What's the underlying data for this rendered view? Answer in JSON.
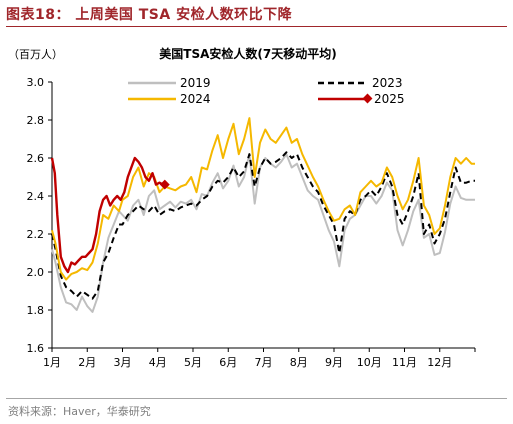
{
  "figure_title": "图表18：  上周美国 TSA 安检人数环比下降",
  "source": "资料来源：Haver，华泰研究",
  "colors": {
    "accent": "#a0262b",
    "series_2019": "#bfbfbf",
    "series_2023": "#000000",
    "series_2024": "#f5b800",
    "series_2025": "#c00000"
  },
  "chart_data": {
    "type": "line",
    "title": "美国TSA安检人数(7天移动平均)",
    "unit": "（百万人）",
    "ylim": [
      1.6,
      3.0
    ],
    "yticks": [
      "3.0",
      "2.8",
      "2.6",
      "2.4",
      "2.2",
      "2.0",
      "1.8",
      "1.6"
    ],
    "ytick_values": [
      3.0,
      2.8,
      2.6,
      2.4,
      2.2,
      2.0,
      1.8,
      1.6
    ],
    "xlim": [
      1,
      13
    ],
    "xticks": [
      "1月",
      "2月",
      "3月",
      "4月",
      "5月",
      "6月",
      "7月",
      "8月",
      "9月",
      "10月",
      "11月",
      "12月"
    ],
    "xtick_values": [
      1,
      2,
      3,
      4,
      5,
      6,
      7,
      8,
      9,
      10,
      11,
      12
    ],
    "legend_position": "top",
    "grid": false,
    "series": [
      {
        "name": "2019",
        "color": "#bfbfbf",
        "style": "solid",
        "x": [
          1.0,
          1.1,
          1.25,
          1.4,
          1.55,
          1.7,
          1.85,
          2.0,
          2.15,
          2.3,
          2.45,
          2.6,
          2.75,
          2.9,
          3.0,
          3.15,
          3.3,
          3.45,
          3.6,
          3.75,
          3.9,
          4.05,
          4.2,
          4.35,
          4.5,
          4.65,
          4.8,
          4.95,
          5.1,
          5.25,
          5.4,
          5.55,
          5.7,
          5.85,
          6.0,
          6.15,
          6.3,
          6.45,
          6.6,
          6.75,
          6.9,
          7.05,
          7.2,
          7.35,
          7.5,
          7.65,
          7.8,
          7.95,
          8.1,
          8.25,
          8.4,
          8.55,
          8.7,
          8.85,
          9.0,
          9.15,
          9.3,
          9.45,
          9.6,
          9.75,
          9.9,
          10.05,
          10.2,
          10.35,
          10.5,
          10.65,
          10.8,
          10.95,
          11.1,
          11.25,
          11.4,
          11.55,
          11.7,
          11.85,
          12.0,
          12.15,
          12.3,
          12.45,
          12.6,
          12.75,
          12.9,
          13.0
        ],
        "y": [
          2.12,
          2.05,
          1.92,
          1.84,
          1.83,
          1.8,
          1.87,
          1.82,
          1.79,
          1.87,
          2.05,
          2.18,
          2.25,
          2.32,
          2.3,
          2.27,
          2.35,
          2.38,
          2.3,
          2.4,
          2.43,
          2.33,
          2.35,
          2.37,
          2.34,
          2.37,
          2.36,
          2.38,
          2.33,
          2.41,
          2.4,
          2.47,
          2.52,
          2.44,
          2.48,
          2.56,
          2.45,
          2.5,
          2.62,
          2.36,
          2.55,
          2.6,
          2.57,
          2.55,
          2.58,
          2.62,
          2.55,
          2.57,
          2.5,
          2.43,
          2.4,
          2.38,
          2.3,
          2.22,
          2.16,
          2.03,
          2.22,
          2.28,
          2.3,
          2.35,
          2.4,
          2.4,
          2.36,
          2.4,
          2.47,
          2.43,
          2.22,
          2.14,
          2.22,
          2.32,
          2.38,
          2.18,
          2.2,
          2.09,
          2.1,
          2.21,
          2.36,
          2.45,
          2.39,
          2.38,
          2.38,
          2.38
        ]
      },
      {
        "name": "2023",
        "color": "#000000",
        "style": "dashed",
        "x": [
          1.0,
          1.1,
          1.25,
          1.4,
          1.55,
          1.7,
          1.85,
          2.0,
          2.15,
          2.3,
          2.45,
          2.6,
          2.75,
          2.9,
          3.0,
          3.15,
          3.3,
          3.45,
          3.6,
          3.75,
          3.9,
          4.05,
          4.2,
          4.35,
          4.5,
          4.65,
          4.8,
          4.95,
          5.1,
          5.25,
          5.4,
          5.55,
          5.7,
          5.85,
          6.0,
          6.15,
          6.3,
          6.45,
          6.6,
          6.75,
          6.9,
          7.05,
          7.2,
          7.35,
          7.5,
          7.65,
          7.8,
          7.95,
          8.1,
          8.25,
          8.4,
          8.55,
          8.7,
          8.85,
          9.0,
          9.15,
          9.3,
          9.45,
          9.6,
          9.75,
          9.9,
          10.05,
          10.2,
          10.35,
          10.5,
          10.65,
          10.8,
          10.95,
          11.1,
          11.25,
          11.4,
          11.55,
          11.7,
          11.85,
          12.0,
          12.15,
          12.3,
          12.45,
          12.6,
          12.75,
          12.9,
          13.0
        ],
        "y": [
          2.2,
          2.12,
          1.98,
          1.92,
          1.9,
          1.87,
          1.9,
          1.88,
          1.86,
          1.9,
          2.05,
          2.1,
          2.18,
          2.25,
          2.25,
          2.3,
          2.32,
          2.35,
          2.33,
          2.32,
          2.35,
          2.3,
          2.32,
          2.33,
          2.32,
          2.34,
          2.35,
          2.36,
          2.35,
          2.38,
          2.4,
          2.45,
          2.48,
          2.47,
          2.5,
          2.55,
          2.5,
          2.53,
          2.62,
          2.45,
          2.55,
          2.6,
          2.57,
          2.58,
          2.6,
          2.63,
          2.6,
          2.62,
          2.55,
          2.5,
          2.45,
          2.42,
          2.35,
          2.3,
          2.25,
          2.1,
          2.28,
          2.32,
          2.3,
          2.38,
          2.4,
          2.43,
          2.4,
          2.45,
          2.52,
          2.45,
          2.3,
          2.25,
          2.32,
          2.4,
          2.52,
          2.2,
          2.25,
          2.15,
          2.2,
          2.28,
          2.42,
          2.55,
          2.47,
          2.47,
          2.48,
          2.48
        ]
      },
      {
        "name": "2024",
        "color": "#f5b800",
        "style": "solid",
        "x": [
          1.0,
          1.1,
          1.25,
          1.4,
          1.55,
          1.7,
          1.85,
          2.0,
          2.15,
          2.3,
          2.45,
          2.6,
          2.75,
          2.9,
          3.0,
          3.15,
          3.3,
          3.45,
          3.6,
          3.75,
          3.9,
          4.05,
          4.2,
          4.35,
          4.5,
          4.65,
          4.8,
          4.95,
          5.1,
          5.25,
          5.4,
          5.55,
          5.7,
          5.85,
          6.0,
          6.15,
          6.3,
          6.45,
          6.6,
          6.75,
          6.9,
          7.05,
          7.2,
          7.35,
          7.5,
          7.65,
          7.8,
          7.95,
          8.1,
          8.25,
          8.4,
          8.55,
          8.7,
          8.85,
          9.0,
          9.15,
          9.3,
          9.45,
          9.6,
          9.75,
          9.9,
          10.05,
          10.2,
          10.35,
          10.5,
          10.65,
          10.8,
          10.95,
          11.1,
          11.25,
          11.4,
          11.55,
          11.7,
          11.85,
          12.0,
          12.15,
          12.3,
          12.45,
          12.6,
          12.75,
          12.9,
          13.0
        ],
        "y": [
          2.22,
          2.15,
          2.0,
          1.96,
          1.99,
          2.0,
          2.02,
          2.01,
          2.05,
          2.15,
          2.3,
          2.28,
          2.35,
          2.32,
          2.38,
          2.4,
          2.5,
          2.55,
          2.45,
          2.52,
          2.5,
          2.42,
          2.45,
          2.44,
          2.43,
          2.45,
          2.46,
          2.5,
          2.42,
          2.55,
          2.54,
          2.64,
          2.72,
          2.6,
          2.7,
          2.78,
          2.62,
          2.7,
          2.81,
          2.5,
          2.68,
          2.75,
          2.7,
          2.68,
          2.72,
          2.76,
          2.68,
          2.7,
          2.62,
          2.56,
          2.5,
          2.45,
          2.38,
          2.32,
          2.27,
          2.28,
          2.33,
          2.35,
          2.3,
          2.42,
          2.45,
          2.48,
          2.45,
          2.47,
          2.55,
          2.5,
          2.4,
          2.33,
          2.38,
          2.48,
          2.6,
          2.35,
          2.3,
          2.2,
          2.23,
          2.35,
          2.5,
          2.6,
          2.57,
          2.6,
          2.57,
          2.57
        ]
      },
      {
        "name": "2025",
        "color": "#c00000",
        "style": "solid",
        "marker": "diamond",
        "x": [
          1.0,
          1.08,
          1.15,
          1.25,
          1.35,
          1.45,
          1.55,
          1.65,
          1.75,
          1.85,
          1.95,
          2.05,
          2.15,
          2.25,
          2.35,
          2.45,
          2.55,
          2.65,
          2.75,
          2.85,
          2.95,
          3.05,
          3.15,
          3.25,
          3.35,
          3.45,
          3.55,
          3.65,
          3.75,
          3.85,
          3.95,
          4.05,
          4.15,
          4.2
        ],
        "y": [
          2.6,
          2.52,
          2.3,
          2.08,
          2.03,
          2.0,
          2.05,
          2.04,
          2.06,
          2.08,
          2.08,
          2.1,
          2.12,
          2.2,
          2.32,
          2.38,
          2.4,
          2.35,
          2.38,
          2.4,
          2.38,
          2.42,
          2.5,
          2.55,
          2.6,
          2.58,
          2.55,
          2.5,
          2.48,
          2.52,
          2.46,
          2.47,
          2.46,
          2.46
        ]
      }
    ]
  }
}
